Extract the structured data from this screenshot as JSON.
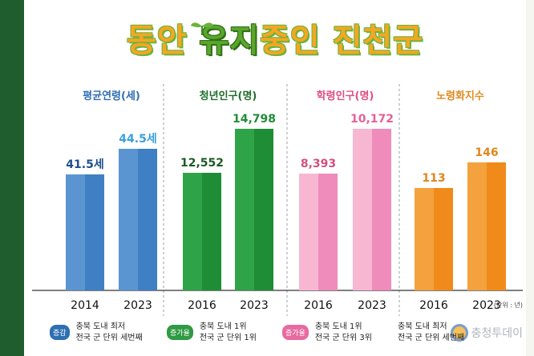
{
  "title": {
    "part1": "동안 ",
    "part2": "유지",
    "part3": "중인 ",
    "part4": "진천군"
  },
  "unit_note": "(단위 : 년)",
  "watermark": "충청투데이",
  "chart_data": {
    "type": "bar",
    "title": "동안 유지중인 진천군",
    "panels": [
      {
        "label": "평균연령(세)",
        "label_color": "#2f6db5",
        "bar_color": "#5b95d1",
        "bar_dark": "#3f7fc3",
        "value_color": "#1d4f8c",
        "value_color_2": "#3aa0e0",
        "categories": [
          "2014",
          "2023"
        ],
        "values": [
          41.5,
          44.5
        ],
        "value_labels": [
          "41.5세",
          "44.5세"
        ],
        "badge": "증감",
        "badge_color": "#2e6fb2",
        "note": [
          "충북 도내 최저",
          "전국 군 단위 세번째"
        ]
      },
      {
        "label": "청년인구(명)",
        "label_color": "#1f6e2c",
        "bar_color": "#2fa347",
        "bar_dark": "#1f8c36",
        "value_color": "#1c5b25",
        "value_color_2": "#1f8c36",
        "categories": [
          "2016",
          "2023"
        ],
        "values": [
          12552,
          14798
        ],
        "value_labels": [
          "12,552",
          "14,798"
        ],
        "badge": "증가율",
        "badge_color": "#2f9a43",
        "note": [
          "충북 도내 1위",
          "전국 군 단위 1위"
        ]
      },
      {
        "label": "학령인구(명)",
        "label_color": "#e0507f",
        "bar_color": "#f7b7d2",
        "bar_dark": "#f08cbb",
        "value_color": "#d0507e",
        "value_color_2": "#e55f96",
        "categories": [
          "2016",
          "2023"
        ],
        "values": [
          8393,
          10172
        ],
        "value_labels": [
          "8,393",
          "10,172"
        ],
        "badge": "증가율",
        "badge_color": "#e86aa0",
        "note": [
          "충북 도내 1위",
          "전국 군 단위 3위"
        ]
      },
      {
        "label": "노령화지수",
        "label_color": "#e08a1e",
        "bar_color": "#f3a23d",
        "bar_dark": "#f08a1a",
        "value_color": "#e0861c",
        "value_color_2": "#e0861c",
        "categories": [
          "2016",
          "2023"
        ],
        "values": [
          113,
          146
        ],
        "value_labels": [
          "113",
          "146"
        ],
        "badge": "",
        "badge_color": "#e08a1e",
        "note": [
          "충북 도내 최저",
          "전국 군 단위 세번째"
        ]
      }
    ]
  }
}
